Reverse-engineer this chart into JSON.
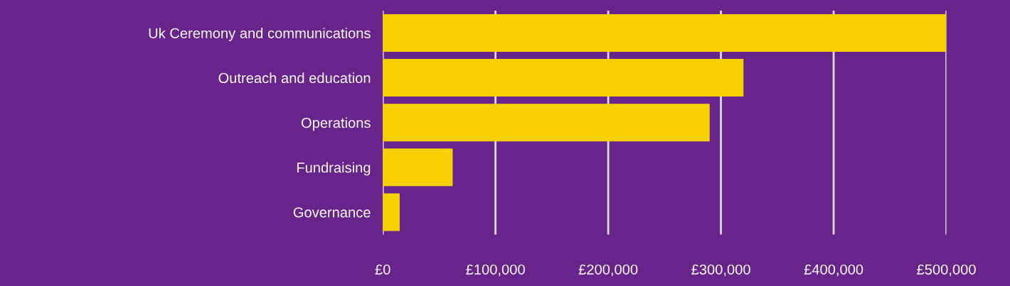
{
  "chart_data": {
    "type": "bar",
    "orientation": "horizontal",
    "categories": [
      "Uk Ceremony and communications",
      "Outreach and education",
      "Operations",
      "Fundraising",
      "Governance"
    ],
    "values": [
      500000,
      320000,
      290000,
      62000,
      15000
    ],
    "color": "#f7d000",
    "xlim": [
      0,
      500000
    ],
    "xticks": [
      {
        "value": 0,
        "label": "£0"
      },
      {
        "value": 100000,
        "label": "£100,000"
      },
      {
        "value": 200000,
        "label": "£200,000"
      },
      {
        "value": 300000,
        "label": "£300,000"
      },
      {
        "value": 400000,
        "label": "£400,000"
      },
      {
        "value": 500000,
        "label": "£500,000"
      }
    ],
    "grid": "x",
    "legend": false
  }
}
